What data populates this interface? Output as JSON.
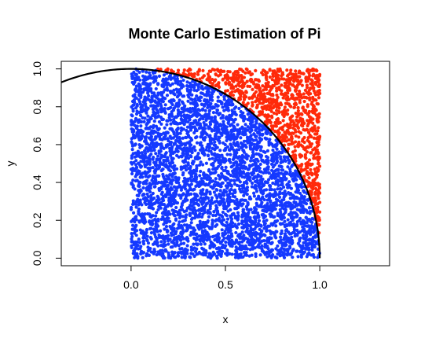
{
  "chart_data": {
    "type": "scatter",
    "title": "Monte Carlo Estimation of Pi",
    "xlabel": "x",
    "ylabel": "y",
    "xlim": [
      -0.37,
      1.37
    ],
    "ylim": [
      -0.04,
      1.04
    ],
    "x_ticks": [
      {
        "value": 0.0,
        "label": "0.0"
      },
      {
        "value": 0.5,
        "label": "0.5"
      },
      {
        "value": 1.0,
        "label": "1.0"
      }
    ],
    "y_ticks": [
      {
        "value": 0.0,
        "label": "0.0"
      },
      {
        "value": 0.2,
        "label": "0.2"
      },
      {
        "value": 0.4,
        "label": "0.4"
      },
      {
        "value": 0.6,
        "label": "0.6"
      },
      {
        "value": 0.8,
        "label": "0.8"
      },
      {
        "value": 1.0,
        "label": "1.0"
      }
    ],
    "points": {
      "count": 5000,
      "x_range": [
        0,
        1
      ],
      "y_range": [
        0,
        1
      ],
      "inside_color": "#1539ff",
      "outside_color": "#ff2a0a"
    },
    "curve": {
      "equation": "x^2 + y^2 = 1",
      "color": "#000000"
    },
    "grid": false
  }
}
